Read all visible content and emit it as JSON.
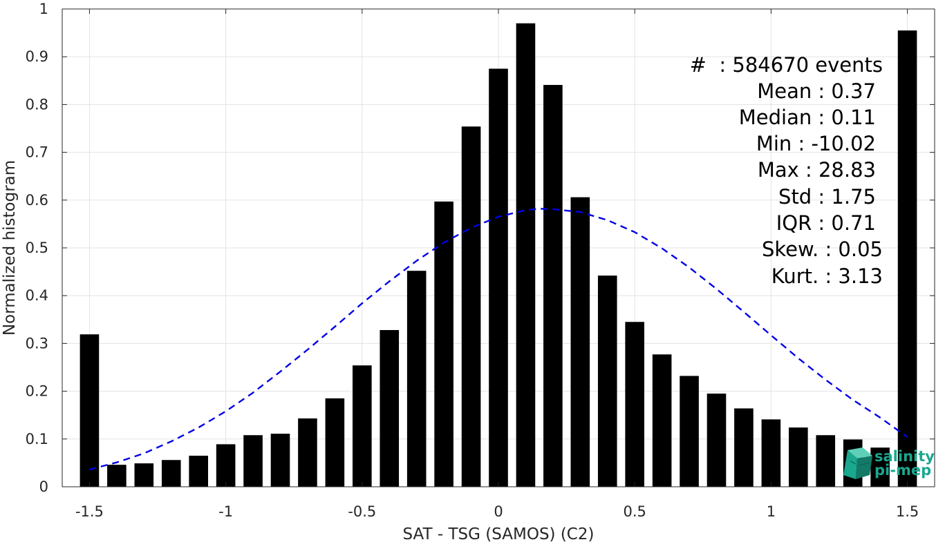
{
  "chart_data": {
    "type": "bar",
    "xlabel": "SAT - TSG (SAMOS) (C2)",
    "ylabel": "Normalized histogram",
    "xlim": [
      -1.6,
      1.6
    ],
    "ylim": [
      0,
      1
    ],
    "xticks": [
      -1.5,
      -1,
      -0.5,
      0,
      0.5,
      1,
      1.5
    ],
    "xtick_labels": [
      "-1.5",
      "-1",
      "-0.5",
      "0",
      "0.5",
      "1",
      "1.5"
    ],
    "yticks": [
      0,
      0.1,
      0.2,
      0.3,
      0.4,
      0.5,
      0.6,
      0.7,
      0.8,
      0.9,
      1
    ],
    "ytick_labels": [
      "0",
      "0.1",
      "0.2",
      "0.3",
      "0.4",
      "0.5",
      "0.6",
      "0.7",
      "0.8",
      "0.9",
      "1"
    ],
    "grid": true,
    "bar_color": "#000000",
    "bar_width": 0.07,
    "bars": [
      {
        "x": -1.5,
        "y": 0.319
      },
      {
        "x": -1.4,
        "y": 0.046
      },
      {
        "x": -1.3,
        "y": 0.049
      },
      {
        "x": -1.2,
        "y": 0.056
      },
      {
        "x": -1.1,
        "y": 0.065
      },
      {
        "x": -1.0,
        "y": 0.089
      },
      {
        "x": -0.9,
        "y": 0.108
      },
      {
        "x": -0.8,
        "y": 0.111
      },
      {
        "x": -0.7,
        "y": 0.143
      },
      {
        "x": -0.6,
        "y": 0.185
      },
      {
        "x": -0.5,
        "y": 0.254
      },
      {
        "x": -0.4,
        "y": 0.328
      },
      {
        "x": -0.3,
        "y": 0.452
      },
      {
        "x": -0.2,
        "y": 0.597
      },
      {
        "x": -0.1,
        "y": 0.754
      },
      {
        "x": 0.0,
        "y": 0.875
      },
      {
        "x": 0.1,
        "y": 0.97
      },
      {
        "x": 0.2,
        "y": 0.841
      },
      {
        "x": 0.3,
        "y": 0.606
      },
      {
        "x": 0.4,
        "y": 0.442
      },
      {
        "x": 0.5,
        "y": 0.345
      },
      {
        "x": 0.6,
        "y": 0.277
      },
      {
        "x": 0.7,
        "y": 0.232
      },
      {
        "x": 0.8,
        "y": 0.195
      },
      {
        "x": 0.9,
        "y": 0.164
      },
      {
        "x": 1.0,
        "y": 0.141
      },
      {
        "x": 1.1,
        "y": 0.124
      },
      {
        "x": 1.2,
        "y": 0.108
      },
      {
        "x": 1.3,
        "y": 0.099
      },
      {
        "x": 1.4,
        "y": 0.082
      },
      {
        "x": 1.5,
        "y": 0.955
      }
    ],
    "fit_curve": {
      "type": "gaussian",
      "style": "dashed",
      "color": "#0000e6",
      "points": [
        {
          "x": -1.5,
          "y": 0.036
        },
        {
          "x": -1.4,
          "y": 0.051
        },
        {
          "x": -1.3,
          "y": 0.07
        },
        {
          "x": -1.2,
          "y": 0.095
        },
        {
          "x": -1.1,
          "y": 0.124
        },
        {
          "x": -1.0,
          "y": 0.158
        },
        {
          "x": -0.9,
          "y": 0.197
        },
        {
          "x": -0.8,
          "y": 0.241
        },
        {
          "x": -0.7,
          "y": 0.287
        },
        {
          "x": -0.6,
          "y": 0.335
        },
        {
          "x": -0.5,
          "y": 0.384
        },
        {
          "x": -0.4,
          "y": 0.43
        },
        {
          "x": -0.3,
          "y": 0.473
        },
        {
          "x": -0.2,
          "y": 0.511
        },
        {
          "x": -0.1,
          "y": 0.542
        },
        {
          "x": 0.0,
          "y": 0.565
        },
        {
          "x": 0.1,
          "y": 0.579
        },
        {
          "x": 0.15,
          "y": 0.582
        },
        {
          "x": 0.2,
          "y": 0.581
        },
        {
          "x": 0.3,
          "y": 0.575
        },
        {
          "x": 0.4,
          "y": 0.558
        },
        {
          "x": 0.5,
          "y": 0.533
        },
        {
          "x": 0.6,
          "y": 0.499
        },
        {
          "x": 0.7,
          "y": 0.459
        },
        {
          "x": 0.8,
          "y": 0.414
        },
        {
          "x": 0.9,
          "y": 0.366
        },
        {
          "x": 1.0,
          "y": 0.317
        },
        {
          "x": 1.1,
          "y": 0.269
        },
        {
          "x": 1.2,
          "y": 0.224
        },
        {
          "x": 1.3,
          "y": 0.182
        },
        {
          "x": 1.4,
          "y": 0.145
        },
        {
          "x": 1.5,
          "y": 0.104
        }
      ]
    }
  },
  "stats": [
    "#  : 584670 events",
    "Mean : 0.37",
    "Median : 0.11",
    "Min : -10.02",
    "Max : 28.83",
    "Std : 1.75",
    "IQR : 0.71",
    "Skew. : 0.05",
    "Kurt. : 3.13"
  ],
  "logo": {
    "line1": "salinity",
    "line2": "pi-mep",
    "color": "#1aa88f"
  }
}
